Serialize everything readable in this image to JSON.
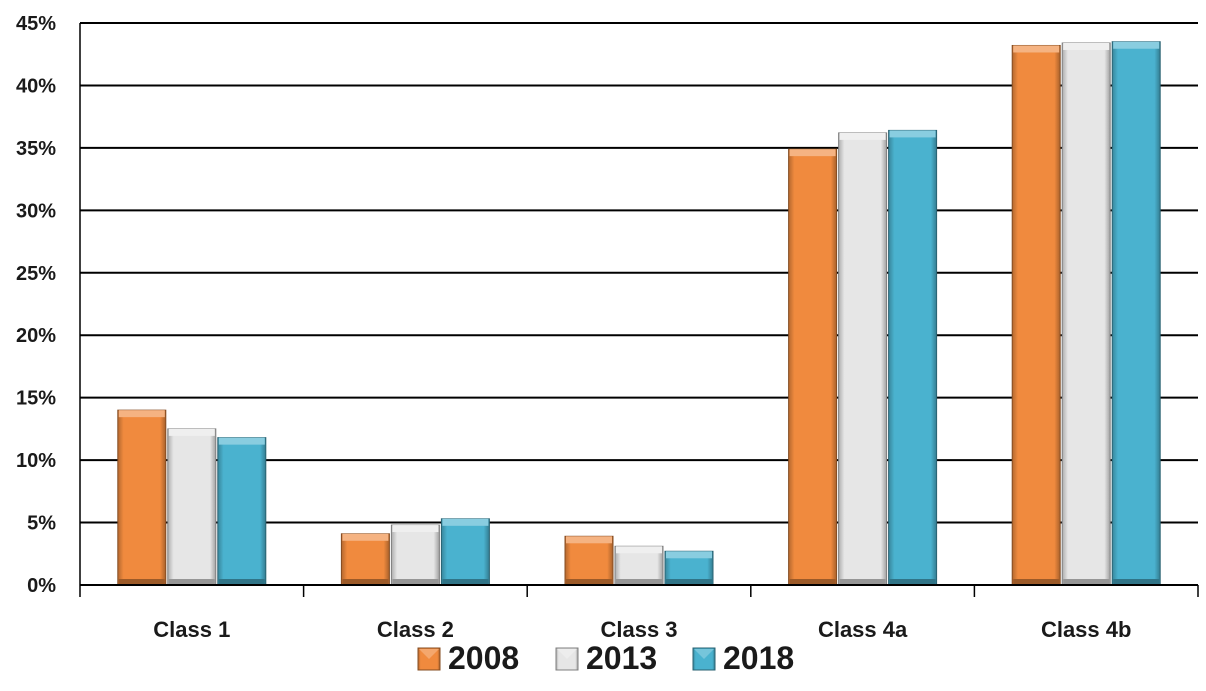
{
  "chart_data": {
    "type": "bar",
    "title": "",
    "xlabel": "",
    "ylabel": "",
    "categories": [
      "Class 1",
      "Class 2",
      "Class 3",
      "Class 4a",
      "Class 4b"
    ],
    "series": [
      {
        "name": "2008",
        "values": [
          14.0,
          4.1,
          3.9,
          34.9,
          43.2
        ],
        "color": "#f08a3e"
      },
      {
        "name": "2013",
        "values": [
          12.5,
          4.8,
          3.1,
          36.2,
          43.4
        ],
        "color": "#e6e6e6"
      },
      {
        "name": "2018",
        "values": [
          11.8,
          5.3,
          2.7,
          36.4,
          43.5
        ],
        "color": "#4ab2cf"
      }
    ],
    "ylim": [
      0,
      45
    ],
    "yticks": [
      0,
      5,
      10,
      15,
      20,
      25,
      30,
      35,
      40,
      45
    ],
    "ytick_labels": [
      "0%",
      "5%",
      "10%",
      "15%",
      "20%",
      "25%",
      "30%",
      "35%",
      "40%",
      "45%"
    ],
    "grid": true,
    "legend_position": "bottom"
  }
}
